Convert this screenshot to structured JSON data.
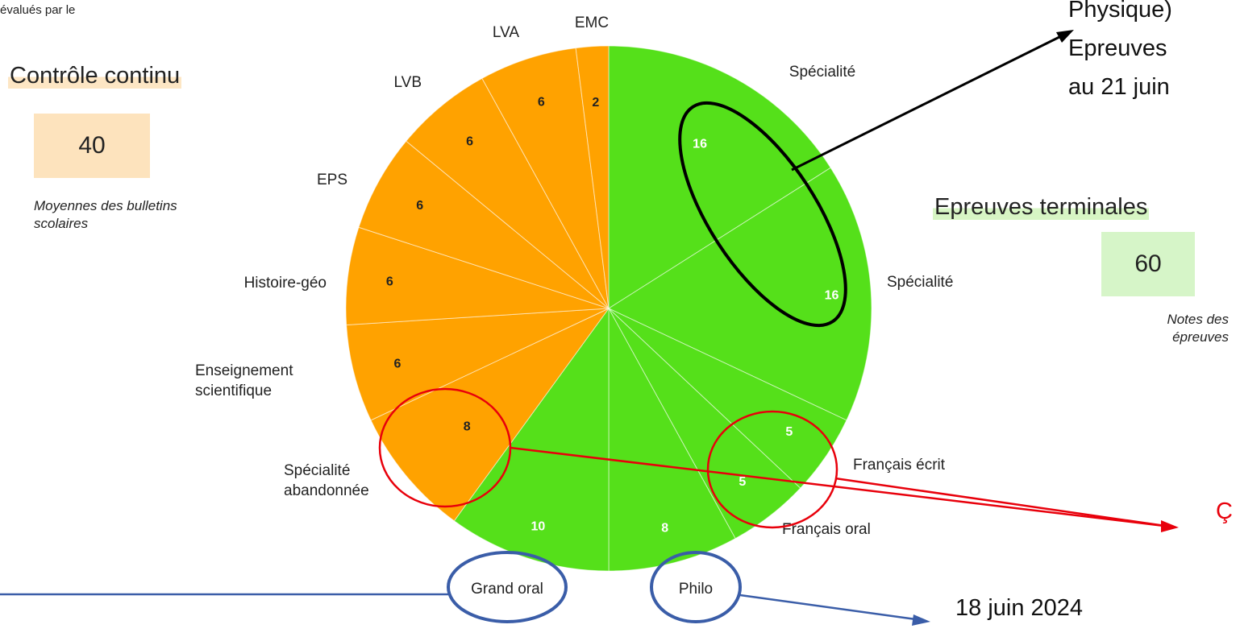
{
  "top_snippet": "évalués par le",
  "controle": {
    "title": "Contrôle continu",
    "value": "40",
    "note": "Moyennes des bulletins scolaires"
  },
  "terminales": {
    "title": "Epreuves terminales",
    "value": "60",
    "note": "Notes des épreuves"
  },
  "annotation_top": [
    "Physique)",
    "Epreuves",
    "au 21 juin"
  ],
  "annotation_date": "18 juin 2024",
  "annotation_red_partial": "Ç",
  "colors": {
    "orange": "#ffa200",
    "green": "#55e01a",
    "black_ring": "#000000",
    "red_ring": "#e8000b",
    "blue_ring": "#3a5da8"
  },
  "chart_data": {
    "type": "pie",
    "start_angle_deg": 0,
    "direction": "clockwise",
    "slices": [
      {
        "label": "Spécialité",
        "value": 16,
        "group": "Epreuves terminales"
      },
      {
        "label": "Spécialité",
        "value": 16,
        "group": "Epreuves terminales"
      },
      {
        "label": "Français écrit",
        "value": 5,
        "group": "Epreuves terminales"
      },
      {
        "label": "Français oral",
        "value": 5,
        "group": "Epreuves terminales"
      },
      {
        "label": "Philo",
        "value": 8,
        "group": "Epreuves terminales"
      },
      {
        "label": "Grand oral",
        "value": 10,
        "group": "Epreuves terminales"
      },
      {
        "label": "Spécialité abandonnée",
        "value": 8,
        "group": "Contrôle continu"
      },
      {
        "label": "Enseignement scientifique",
        "value": 6,
        "group": "Contrôle continu"
      },
      {
        "label": "Histoire-géo",
        "value": 6,
        "group": "Contrôle continu"
      },
      {
        "label": "EPS",
        "value": 6,
        "group": "Contrôle continu"
      },
      {
        "label": "LVB",
        "value": 6,
        "group": "Contrôle continu"
      },
      {
        "label": "LVA",
        "value": 6,
        "group": "Contrôle continu"
      },
      {
        "label": "EMC",
        "value": 2,
        "group": "Contrôle continu"
      }
    ]
  }
}
